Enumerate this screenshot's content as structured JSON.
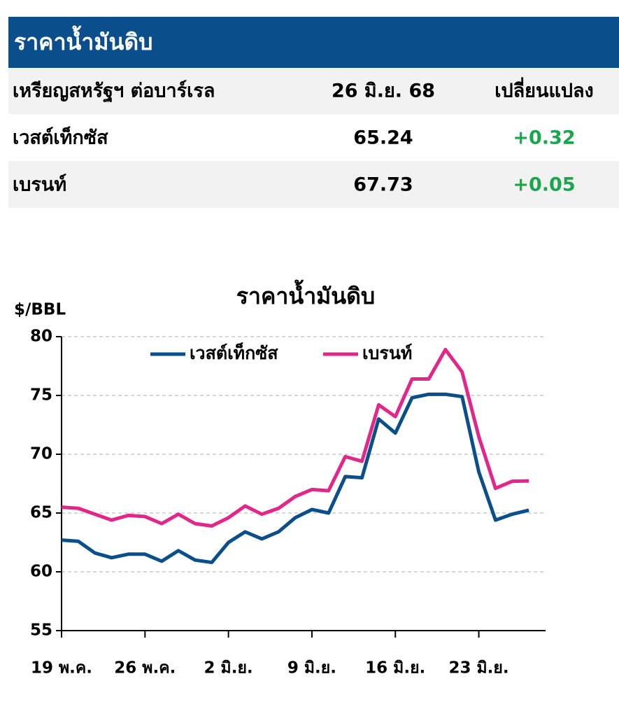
{
  "table": {
    "title": "ราคาน้ำมันดิบ",
    "header": [
      "เหรียญสหรัฐฯ ต่อบาร์เรล",
      "26 มิ.ย. 68",
      "เปลี่ยนแปลง"
    ],
    "rows": [
      [
        "เวสต์เท็กซัส",
        "65.24",
        "+0.32"
      ],
      [
        "เบรนท์",
        "67.73",
        "+0.05"
      ]
    ]
  },
  "chart_data": {
    "type": "line",
    "title": "ราคาน้ำมันดิบ",
    "y_label": "$/BBL",
    "categories": [
      "19 พ.ค.",
      null,
      null,
      null,
      null,
      "26 พ.ค.",
      null,
      null,
      null,
      null,
      "2 มิ.ย.",
      null,
      null,
      null,
      null,
      "9 มิ.ย.",
      null,
      null,
      null,
      null,
      "16 มิ.ย.",
      null,
      null,
      null,
      null,
      "23 มิ.ย.",
      null,
      null,
      null
    ],
    "series": [
      {
        "name": "เวสต์เท็กซัส",
        "color": "#0b4f8a",
        "values": [
          62.7,
          62.6,
          61.6,
          61.2,
          61.5,
          61.5,
          60.9,
          61.8,
          61.0,
          60.8,
          62.5,
          63.4,
          62.8,
          63.4,
          64.6,
          65.3,
          65.0,
          68.1,
          68.0,
          73.0,
          71.8,
          74.8,
          75.1,
          75.1,
          74.9,
          68.5,
          64.4,
          64.9,
          65.24
        ]
      },
      {
        "name": "เบรนท์",
        "color": "#e0288a",
        "values": [
          65.5,
          65.4,
          64.9,
          64.4,
          64.8,
          64.7,
          64.1,
          64.9,
          64.1,
          63.9,
          64.6,
          65.6,
          64.9,
          65.4,
          66.4,
          67.0,
          66.9,
          69.8,
          69.4,
          74.2,
          73.2,
          76.4,
          76.4,
          78.9,
          77.0,
          71.5,
          67.1,
          67.7,
          67.73
        ]
      }
    ],
    "ylim": [
      55,
      80
    ],
    "yticks": [
      55,
      60,
      65,
      70,
      75,
      80
    ],
    "grid": true
  }
}
